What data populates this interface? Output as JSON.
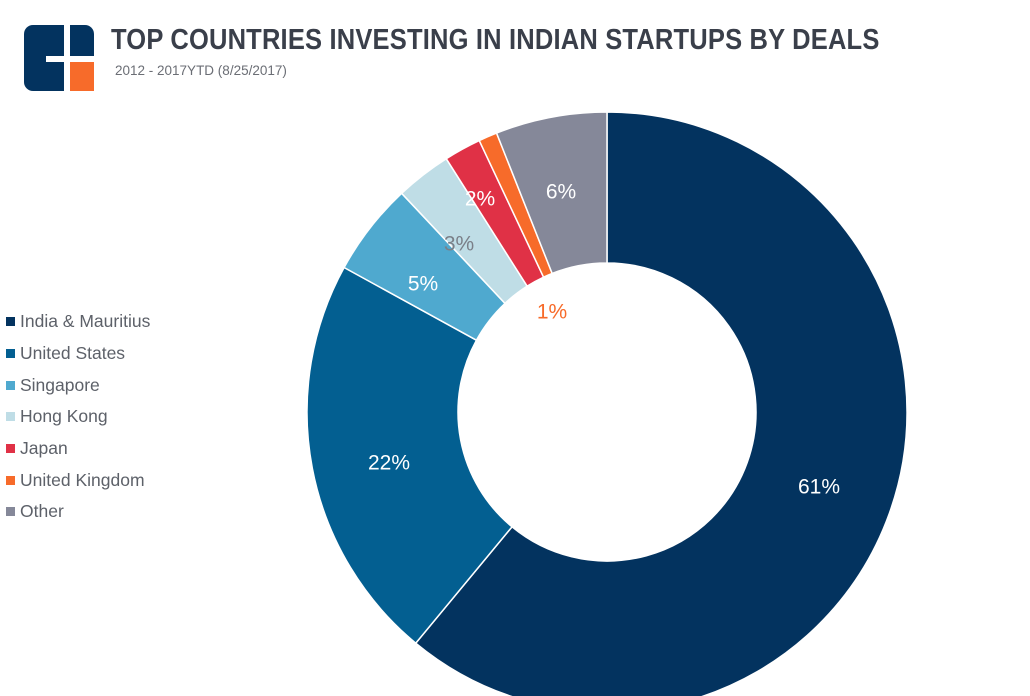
{
  "header": {
    "title": "TOP COUNTRIES INVESTING IN INDIAN STARTUPS BY DEALS",
    "subtitle": "2012 - 2017YTD (8/25/2017)"
  },
  "chart_data": {
    "type": "pie",
    "style": "donut",
    "title": "TOP COUNTRIES INVESTING IN INDIAN STARTUPS BY DEALS",
    "subtitle": "2012 - 2017YTD (8/25/2017)",
    "legend_position": "left",
    "categories": [
      "India & Mauritius",
      "United States",
      "Singapore",
      "Hong Kong",
      "Japan",
      "United Kingdom",
      "Other"
    ],
    "values": [
      61,
      22,
      5,
      3,
      2,
      1,
      6
    ],
    "labels": [
      "61%",
      "22%",
      "5%",
      "3%",
      "2%",
      "1%",
      "6%"
    ],
    "colors": [
      "#03335f",
      "#035f91",
      "#4fa9cf",
      "#bfdde6",
      "#e03146",
      "#f76b2a",
      "#858899"
    ],
    "label_colors": [
      "#ffffff",
      "#ffffff",
      "#ffffff",
      "#7a7f88",
      "#ffffff",
      "#f76b2a",
      "#ffffff"
    ]
  }
}
